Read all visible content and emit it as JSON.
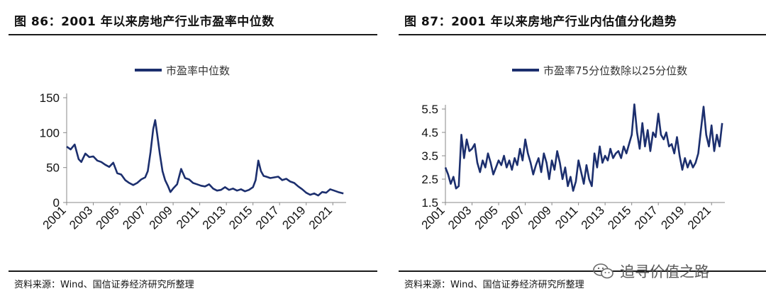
{
  "left": {
    "title": "图 86：2001 年以来房地产行业市盈率中位数",
    "source": "资料来源：Wind、国信证券经济研究所整理"
  },
  "right": {
    "title": "图 87：2001 年以来房地产行业内估值分化趋势",
    "source": "资料来源：Wind、国信证券经济研究所整理"
  },
  "watermark": {
    "text": "追寻价值之路",
    "icon": "wechat-icon"
  },
  "chart_data": [
    {
      "type": "line",
      "title": "",
      "xlabel": "",
      "ylabel": "",
      "legend_position": "top-center",
      "ylim": [
        0,
        150
      ],
      "yticks": [
        "0",
        "50",
        "100",
        "150"
      ],
      "xlim": [
        2001,
        2022
      ],
      "xticks": [
        "2001",
        "2003",
        "2005",
        "2007",
        "2009",
        "2011",
        "2013",
        "2015",
        "2017",
        "2019",
        "2021"
      ],
      "grid": false,
      "color": "#1c2f6e",
      "series": [
        {
          "name": "市盈率中位数",
          "x": [
            2001.0,
            2001.3,
            2001.6,
            2001.9,
            2002.1,
            2002.4,
            2002.7,
            2003.0,
            2003.3,
            2003.6,
            2003.9,
            2004.2,
            2004.5,
            2004.8,
            2005.1,
            2005.4,
            2005.7,
            2006.0,
            2006.3,
            2006.6,
            2006.9,
            2007.1,
            2007.3,
            2007.5,
            2007.65,
            2007.8,
            2008.0,
            2008.2,
            2008.4,
            2008.6,
            2008.8,
            2009.0,
            2009.3,
            2009.6,
            2009.9,
            2010.2,
            2010.5,
            2010.8,
            2011.1,
            2011.4,
            2011.7,
            2012.0,
            2012.3,
            2012.6,
            2012.9,
            2013.2,
            2013.5,
            2013.8,
            2014.1,
            2014.4,
            2014.7,
            2015.0,
            2015.2,
            2015.4,
            2015.6,
            2015.8,
            2016.0,
            2016.3,
            2016.6,
            2016.9,
            2017.2,
            2017.5,
            2017.8,
            2018.1,
            2018.4,
            2018.7,
            2019.0,
            2019.3,
            2019.6,
            2019.9,
            2020.2,
            2020.5,
            2020.8,
            2021.1,
            2021.4,
            2021.8
          ],
          "values": [
            80,
            76,
            83,
            62,
            58,
            70,
            65,
            66,
            60,
            58,
            54,
            51,
            57,
            42,
            40,
            32,
            28,
            25,
            28,
            33,
            36,
            45,
            72,
            105,
            118,
            98,
            70,
            45,
            32,
            24,
            15,
            20,
            26,
            48,
            35,
            33,
            28,
            26,
            24,
            23,
            26,
            20,
            17,
            18,
            22,
            18,
            20,
            17,
            19,
            16,
            18,
            22,
            32,
            60,
            45,
            38,
            37,
            35,
            36,
            37,
            32,
            34,
            30,
            28,
            23,
            19,
            14,
            11,
            13,
            10,
            15,
            14,
            19,
            17,
            15,
            13
          ]
        }
      ]
    },
    {
      "type": "line",
      "title": "",
      "xlabel": "",
      "ylabel": "",
      "legend_position": "top-center",
      "ylim": [
        1.5,
        5.5
      ],
      "yticks": [
        "1.5",
        "2.5",
        "3.5",
        "4.5",
        "5.5"
      ],
      "xlim": [
        2001,
        2022
      ],
      "xticks": [
        "2001",
        "2003",
        "2005",
        "2007",
        "2009",
        "2011",
        "2013",
        "2015",
        "2017",
        "2019",
        "2021"
      ],
      "grid": false,
      "color": "#1c2f6e",
      "series": [
        {
          "name": "市盈率75分位数除以25分位数",
          "x": [
            2001.0,
            2001.2,
            2001.4,
            2001.6,
            2001.8,
            2002.0,
            2002.2,
            2002.4,
            2002.6,
            2002.8,
            2003.0,
            2003.2,
            2003.4,
            2003.6,
            2003.8,
            2004.0,
            2004.2,
            2004.4,
            2004.6,
            2004.8,
            2005.0,
            2005.2,
            2005.4,
            2005.6,
            2005.8,
            2006.0,
            2006.2,
            2006.4,
            2006.6,
            2006.8,
            2007.0,
            2007.2,
            2007.4,
            2007.6,
            2007.8,
            2008.0,
            2008.2,
            2008.4,
            2008.6,
            2008.8,
            2009.0,
            2009.2,
            2009.4,
            2009.6,
            2009.8,
            2010.0,
            2010.2,
            2010.4,
            2010.6,
            2010.8,
            2011.0,
            2011.2,
            2011.4,
            2011.6,
            2011.8,
            2012.0,
            2012.2,
            2012.4,
            2012.6,
            2012.8,
            2013.0,
            2013.2,
            2013.4,
            2013.6,
            2013.8,
            2014.0,
            2014.2,
            2014.4,
            2014.6,
            2014.8,
            2015.0,
            2015.2,
            2015.4,
            2015.6,
            2015.8,
            2016.0,
            2016.2,
            2016.4,
            2016.6,
            2016.8,
            2017.0,
            2017.2,
            2017.4,
            2017.6,
            2017.8,
            2018.0,
            2018.2,
            2018.4,
            2018.6,
            2018.8,
            2019.0,
            2019.2,
            2019.4,
            2019.6,
            2019.8,
            2020.0,
            2020.2,
            2020.4,
            2020.6,
            2020.8,
            2021.0,
            2021.2,
            2021.4,
            2021.6,
            2021.8
          ],
          "values": [
            3.0,
            2.7,
            2.3,
            2.6,
            2.1,
            2.2,
            4.4,
            3.4,
            4.2,
            3.7,
            3.8,
            4.0,
            3.2,
            2.8,
            3.3,
            3.0,
            3.6,
            3.2,
            2.7,
            3.0,
            3.3,
            3.1,
            3.5,
            3.0,
            3.3,
            2.9,
            3.4,
            3.1,
            3.8,
            3.3,
            4.2,
            3.6,
            3.2,
            2.7,
            3.1,
            3.4,
            2.8,
            3.6,
            3.2,
            2.5,
            3.3,
            2.9,
            3.7,
            3.2,
            2.5,
            3.0,
            2.2,
            2.6,
            2.0,
            2.4,
            3.3,
            2.8,
            2.3,
            3.1,
            2.5,
            2.2,
            3.6,
            3.0,
            3.9,
            3.2,
            3.5,
            3.3,
            3.8,
            3.4,
            3.6,
            3.7,
            3.4,
            3.9,
            3.6,
            4.0,
            4.4,
            5.7,
            4.5,
            3.8,
            4.9,
            3.9,
            4.6,
            3.7,
            4.5,
            4.3,
            5.3,
            4.4,
            4.2,
            4.5,
            3.9,
            4.0,
            3.6,
            4.3,
            3.5,
            2.9,
            3.4,
            3.0,
            3.3,
            3.0,
            3.2,
            3.6,
            4.6,
            5.6,
            4.4,
            3.9,
            4.8,
            3.7,
            4.4,
            3.9,
            4.9
          ]
        }
      ]
    }
  ]
}
